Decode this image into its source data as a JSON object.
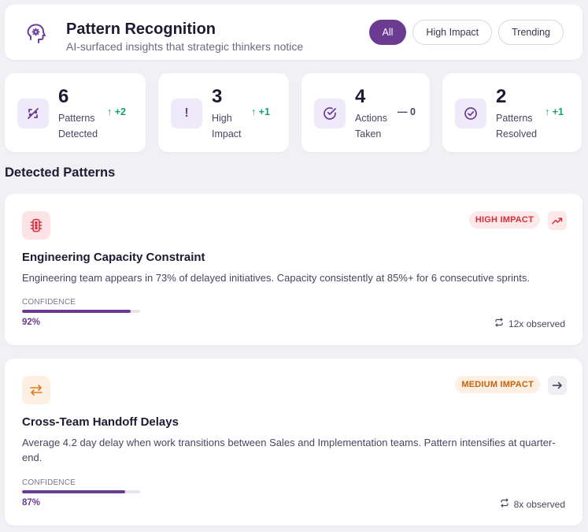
{
  "header": {
    "title": "Pattern Recognition",
    "subtitle": "AI-surfaced insights that strategic thinkers notice",
    "icon": "brain-gear-icon",
    "filters": [
      {
        "label": "All",
        "active": true
      },
      {
        "label": "High Impact",
        "active": false
      },
      {
        "label": "Trending",
        "active": false
      }
    ]
  },
  "stats": [
    {
      "value": "6",
      "label_line1": "Patterns",
      "label_line2": "Detected",
      "delta": "+2",
      "direction": "up",
      "icon": "pattern-icon"
    },
    {
      "value": "3",
      "label_line1": "High",
      "label_line2": "Impact",
      "delta": "+1",
      "direction": "up",
      "icon": "exclamation-icon"
    },
    {
      "value": "4",
      "label_line1": "Actions",
      "label_line2": "Taken",
      "delta": "0",
      "direction": "flat",
      "icon": "check-circle-icon"
    },
    {
      "value": "2",
      "label_line1": "Patterns",
      "label_line2": "Resolved",
      "delta": "+1",
      "direction": "up",
      "icon": "check-circle-icon"
    }
  ],
  "section": {
    "title": "Detected Patterns"
  },
  "patterns": [
    {
      "title": "Engineering Capacity Constraint",
      "description": "Engineering team appears in 73% of delayed initiatives. Capacity consistently at 85%+ for 6 consecutive sprints.",
      "impact": "HIGH IMPACT",
      "impact_color": "#d92d3a",
      "impact_bg": "#fde8ea",
      "icon": "traffic-light-icon",
      "trend": "trending-up",
      "confidence_label": "CONFIDENCE",
      "confidence": 0.92,
      "confidence_text": "92%",
      "observed": "12x observed"
    },
    {
      "title": "Cross-Team Handoff Delays",
      "description": "Average 4.2 day delay when work transitions between Sales and Implementation teams. Pattern intensifies at quarter-end.",
      "impact": "MEDIUM IMPACT",
      "impact_color": "#c8620a",
      "impact_bg": "#fdf0e3",
      "icon": "swap-arrows-icon",
      "trend": "flat",
      "confidence_label": "CONFIDENCE",
      "confidence": 0.87,
      "confidence_text": "87%",
      "observed": "8x observed"
    }
  ],
  "colors": {
    "accent": "#6b3b91",
    "positive": "#16a36b",
    "background": "#f1f1f5"
  }
}
